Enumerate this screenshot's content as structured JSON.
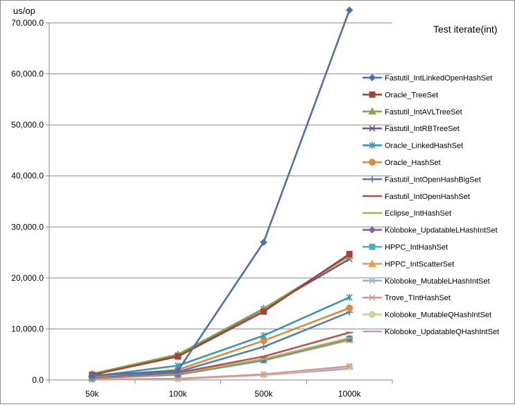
{
  "chart_data": {
    "type": "line",
    "title": "Test iterate(int)",
    "ylabel": "us/op",
    "xlabel": "",
    "categories": [
      "50k",
      "100k",
      "500k",
      "1000k"
    ],
    "ylim": [
      0,
      70000
    ],
    "y_ticks": [
      "0.0",
      "10,000.0",
      "20,000.0",
      "30,000.0",
      "40,000.0",
      "50,000.0",
      "60,000.0",
      "70,000.0"
    ],
    "grid": true,
    "legend_position": "right",
    "series": [
      {
        "name": "Fastutil_IntLinkedOpenHashSet",
        "values": [
          900,
          1800,
          27000,
          72500
        ],
        "color": "#4f6fa8",
        "marker": "diamond"
      },
      {
        "name": "Oracle_TreeSet",
        "values": [
          1000,
          4600,
          13400,
          24700
        ],
        "color": "#a6403d",
        "marker": "square"
      },
      {
        "name": "Fastutil_IntAVLTreeSet",
        "values": [
          1200,
          5000,
          14000,
          24300
        ],
        "color": "#85a846",
        "marker": "triangle"
      },
      {
        "name": "Fastutil_IntRBTreeSet",
        "values": [
          1100,
          4800,
          13900,
          23700
        ],
        "color": "#6e5596",
        "marker": "x"
      },
      {
        "name": "Oracle_LinkedHashSet",
        "values": [
          700,
          2800,
          8700,
          16200
        ],
        "color": "#3c97ad",
        "marker": "star"
      },
      {
        "name": "Oracle_HashSet",
        "values": [
          650,
          2000,
          7700,
          14100
        ],
        "color": "#e08a3b",
        "marker": "circle"
      },
      {
        "name": "Fastutil_IntOpenHashBigSet",
        "values": [
          600,
          1600,
          6500,
          13300
        ],
        "color": "#4b7fc4",
        "marker": "plus"
      },
      {
        "name": "Fastutil_IntOpenHashSet",
        "values": [
          500,
          1400,
          4600,
          9300
        ],
        "color": "#c4504d",
        "marker": "dash"
      },
      {
        "name": "Eclipse_IntHashSet",
        "values": [
          450,
          1200,
          4100,
          8200
        ],
        "color": "#9bbb59",
        "marker": "dash"
      },
      {
        "name": "Koloboke_UpdatableLHashIntSet",
        "values": [
          400,
          1100,
          4000,
          8100
        ],
        "color": "#8064a2",
        "marker": "diamond"
      },
      {
        "name": "HPPC_IntHashSet",
        "values": [
          400,
          1100,
          3900,
          8100
        ],
        "color": "#4bacc6",
        "marker": "square"
      },
      {
        "name": "HPPC_IntScatterSet",
        "values": [
          450,
          1200,
          3900,
          7900
        ],
        "color": "#f79646",
        "marker": "triangle"
      },
      {
        "name": "Koloboke_MutableLHashIntSet",
        "values": [
          350,
          1000,
          3800,
          7800
        ],
        "color": "#95b3d7",
        "marker": "x"
      },
      {
        "name": "Trove_TIntHashSet",
        "values": [
          100,
          250,
          1100,
          2700
        ],
        "color": "#d99694",
        "marker": "x"
      },
      {
        "name": "Koloboke_MutableQHashIntSet",
        "values": [
          100,
          200,
          1000,
          2600
        ],
        "color": "#c3d69b",
        "marker": "circle"
      },
      {
        "name": "Koloboke_UpdatableQHashIntSet",
        "values": [
          100,
          200,
          950,
          2200
        ],
        "color": "#b3a2c7",
        "marker": "dash"
      }
    ]
  }
}
